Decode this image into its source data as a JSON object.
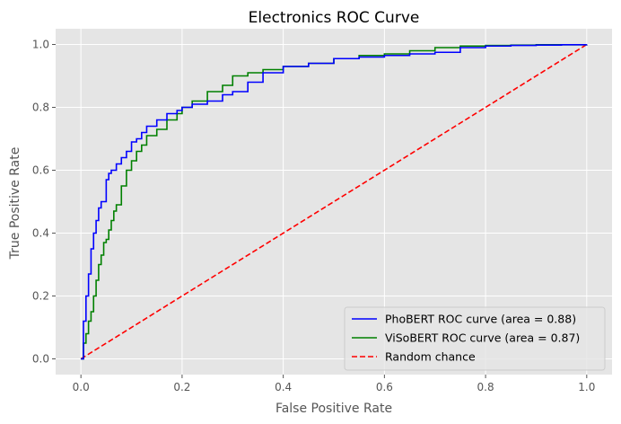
{
  "chart_data": {
    "type": "line",
    "title": "Electronics ROC Curve",
    "xlabel": "False Positive Rate",
    "ylabel": "True Positive Rate",
    "xlim": [
      -0.05,
      1.05
    ],
    "ylim": [
      -0.05,
      1.05
    ],
    "xticks": [
      0.0,
      0.2,
      0.4,
      0.6,
      0.8,
      1.0
    ],
    "xtick_labels": [
      "0.0",
      "0.2",
      "0.4",
      "0.6",
      "0.8",
      "1.0"
    ],
    "yticks": [
      0.0,
      0.2,
      0.4,
      0.6,
      0.8,
      1.0
    ],
    "ytick_labels": [
      "0.0",
      "0.2",
      "0.4",
      "0.6",
      "0.8",
      "1.0"
    ],
    "grid": true,
    "legend_position": "lower-right",
    "series": [
      {
        "name": "PhoBERT ROC curve (area = 0.88)",
        "color": "#0000ff",
        "style": "solid",
        "x": [
          0.0,
          0.005,
          0.01,
          0.015,
          0.02,
          0.025,
          0.03,
          0.035,
          0.04,
          0.05,
          0.055,
          0.06,
          0.07,
          0.08,
          0.09,
          0.1,
          0.11,
          0.12,
          0.13,
          0.15,
          0.17,
          0.19,
          0.2,
          0.22,
          0.25,
          0.28,
          0.3,
          0.33,
          0.36,
          0.4,
          0.45,
          0.5,
          0.55,
          0.6,
          0.65,
          0.7,
          0.75,
          0.8,
          0.85,
          0.9,
          0.95,
          1.0
        ],
        "y": [
          0.0,
          0.12,
          0.2,
          0.27,
          0.35,
          0.4,
          0.44,
          0.48,
          0.5,
          0.57,
          0.59,
          0.6,
          0.62,
          0.64,
          0.66,
          0.69,
          0.7,
          0.72,
          0.74,
          0.76,
          0.78,
          0.79,
          0.8,
          0.81,
          0.82,
          0.84,
          0.85,
          0.88,
          0.91,
          0.93,
          0.94,
          0.955,
          0.96,
          0.965,
          0.97,
          0.975,
          0.99,
          0.995,
          0.997,
          0.998,
          0.999,
          1.0
        ]
      },
      {
        "name": "ViSoBERT ROC curve (area = 0.87)",
        "color": "#008000",
        "style": "solid",
        "x": [
          0.0,
          0.005,
          0.01,
          0.015,
          0.02,
          0.025,
          0.03,
          0.035,
          0.04,
          0.045,
          0.05,
          0.055,
          0.06,
          0.065,
          0.07,
          0.08,
          0.09,
          0.1,
          0.11,
          0.12,
          0.13,
          0.15,
          0.17,
          0.19,
          0.2,
          0.22,
          0.25,
          0.28,
          0.3,
          0.33,
          0.36,
          0.4,
          0.45,
          0.5,
          0.55,
          0.6,
          0.65,
          0.7,
          0.75,
          0.8,
          0.85,
          0.9,
          0.95,
          1.0
        ],
        "y": [
          0.0,
          0.05,
          0.08,
          0.12,
          0.15,
          0.2,
          0.25,
          0.3,
          0.33,
          0.37,
          0.38,
          0.41,
          0.44,
          0.47,
          0.49,
          0.55,
          0.6,
          0.63,
          0.66,
          0.68,
          0.71,
          0.73,
          0.76,
          0.78,
          0.8,
          0.82,
          0.85,
          0.87,
          0.9,
          0.91,
          0.92,
          0.93,
          0.94,
          0.955,
          0.965,
          0.97,
          0.98,
          0.99,
          0.995,
          0.997,
          0.998,
          0.999,
          0.999,
          1.0
        ]
      },
      {
        "name": "Random chance",
        "color": "#ff0000",
        "style": "dashed",
        "x": [
          0.0,
          1.0
        ],
        "y": [
          0.0,
          1.0
        ]
      }
    ]
  }
}
